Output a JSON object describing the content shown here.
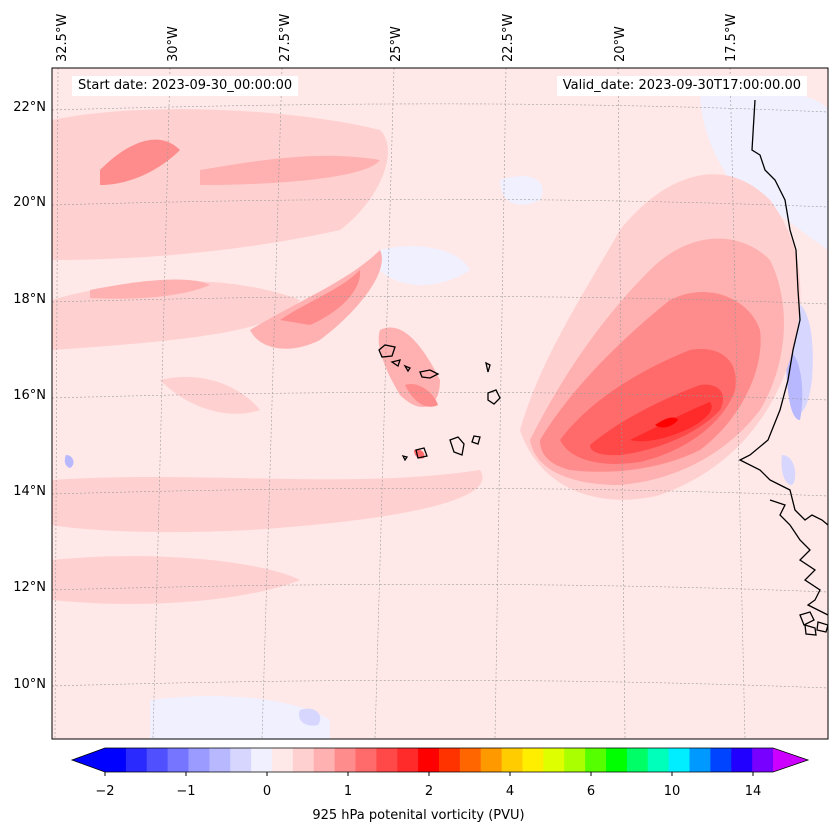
{
  "header": {
    "start_date": "Start date: 2023-09-30_00:00:00",
    "valid_date": "Valid_date: 2023-09-30T17:00:00.00"
  },
  "map": {
    "longitude_labels": [
      "32.5°W",
      "30°W",
      "27.5°W",
      "25°W",
      "22.5°W",
      "20°W",
      "17.5°W"
    ],
    "latitude_labels": [
      "22°N",
      "20°N",
      "18°N",
      "16°N",
      "14°N",
      "12°N",
      "10°N"
    ],
    "features": [
      "coastline-west-africa",
      "cape-verde-islands"
    ]
  },
  "colorbar": {
    "label": "925 hPa potenital vorticity (PVU)",
    "tick_labels": [
      "−2",
      "−1",
      "0",
      "1",
      "2",
      "4",
      "6",
      "10",
      "14"
    ],
    "colors": [
      "#0000ff",
      "#2a2aff",
      "#5050ff",
      "#7575ff",
      "#9a9aff",
      "#b8b8ff",
      "#d6d6ff",
      "#f0f0ff",
      "#ffe8e8",
      "#ffd0d0",
      "#ffb0b0",
      "#ff8c8c",
      "#ff6a6a",
      "#ff4848",
      "#ff2a2a",
      "#ff0000",
      "#ff3300",
      "#ff6600",
      "#ff9900",
      "#ffcc00",
      "#ffee00",
      "#ddff00",
      "#aaff00",
      "#55ff00",
      "#00ff00",
      "#00ff66",
      "#00ffbb",
      "#00eeff",
      "#0099ff",
      "#0044ff",
      "#2200ff",
      "#7700ff"
    ]
  }
}
